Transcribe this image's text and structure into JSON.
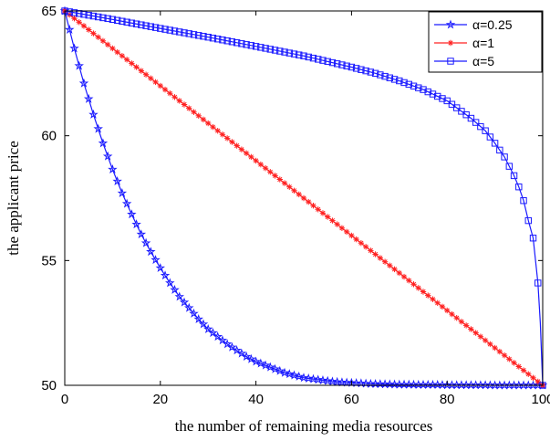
{
  "chart_data": {
    "type": "line",
    "xlabel": "the number of remaining media resources",
    "ylabel": "the applicant price",
    "xlim": [
      0,
      100
    ],
    "ylim": [
      50,
      65
    ],
    "xticks": [
      "0",
      "20",
      "40",
      "60",
      "80",
      "100"
    ],
    "yticks": [
      "50",
      "55",
      "60",
      "65"
    ],
    "grid": false,
    "legend_position": "top-right",
    "series": [
      {
        "name": "α=0.25",
        "color": "#1a1aff",
        "marker": "star",
        "x": [
          0,
          2,
          4,
          6,
          8,
          10,
          12,
          14,
          16,
          18,
          20,
          22,
          24,
          26,
          28,
          30,
          32,
          34,
          36,
          38,
          40,
          42,
          44,
          46,
          48,
          50,
          52,
          54,
          56,
          58,
          60,
          62,
          64,
          66,
          68,
          70,
          72,
          74,
          76,
          78,
          80,
          82,
          84,
          86,
          88,
          90,
          92,
          94,
          96,
          98,
          100
        ],
        "values": [
          65.0,
          63.5,
          62.1,
          60.85,
          59.7,
          58.65,
          57.7,
          56.85,
          56.05,
          55.35,
          54.7,
          54.1,
          53.55,
          53.1,
          52.65,
          52.25,
          51.95,
          51.65,
          51.4,
          51.15,
          50.95,
          50.8,
          50.65,
          50.5,
          50.4,
          50.3,
          50.25,
          50.2,
          50.15,
          50.12,
          50.1,
          50.08,
          50.06,
          50.05,
          50.04,
          50.03,
          50.03,
          50.02,
          50.02,
          50.02,
          50.01,
          50.01,
          50.01,
          50.01,
          50.01,
          50.0,
          50.0,
          50.0,
          50.0,
          50.0,
          50.0
        ]
      },
      {
        "name": "α=1",
        "color": "#ff2020",
        "marker": "asterisk",
        "x": [
          0,
          100
        ],
        "values": [
          65.0,
          50.0
        ]
      },
      {
        "name": "α=5",
        "color": "#1a1aff",
        "marker": "square",
        "x": [
          0,
          5,
          10,
          20,
          30,
          40,
          50,
          60,
          65,
          70,
          75,
          80,
          85,
          88,
          90,
          92,
          94,
          95,
          96,
          97,
          98,
          99,
          99.5,
          100
        ],
        "values": [
          65.0,
          64.83,
          64.66,
          64.3,
          63.95,
          63.58,
          63.2,
          62.75,
          62.5,
          62.2,
          61.85,
          61.4,
          60.7,
          60.2,
          59.7,
          59.15,
          58.4,
          57.95,
          57.4,
          56.6,
          55.9,
          54.1,
          52.5,
          50.0
        ]
      }
    ]
  }
}
